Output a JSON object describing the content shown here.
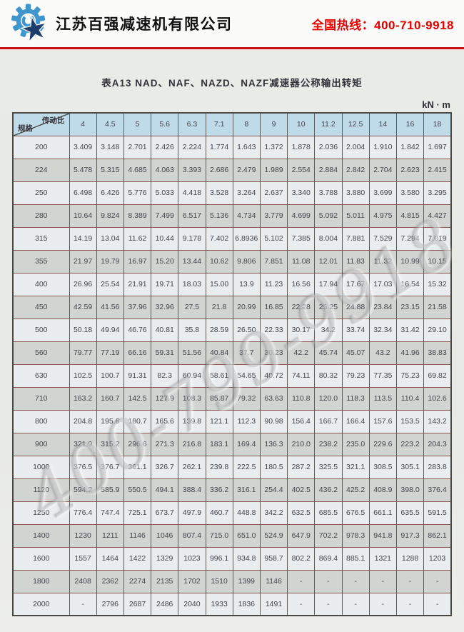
{
  "banner": {
    "company_name": "江苏百强减速机有限公司",
    "hotline": "全国热线：400-710-9918"
  },
  "document": {
    "title": "表A13  NAD、NAF、NAZD、NAZF减速器公称输出转矩",
    "unit": "kN · m",
    "watermark": "400-799-9918"
  },
  "table": {
    "corner": {
      "top_label": "传动比",
      "bottom_label": "规格"
    },
    "ratio_columns": [
      "4",
      "4.5",
      "5",
      "5.6",
      "6.3",
      "7.1",
      "8",
      "9",
      "10",
      "11.2",
      "12.5",
      "14",
      "16",
      "18"
    ],
    "rows": [
      {
        "spec": "200",
        "values": [
          "3.409",
          "3.148",
          "2.701",
          "2.426",
          "2.224",
          "1.774",
          "1.643",
          "1.372",
          "1.878",
          "2.036",
          "2.004",
          "1.910",
          "1.842",
          "1.697"
        ]
      },
      {
        "spec": "224",
        "values": [
          "5.478",
          "5.315",
          "4.685",
          "4.063",
          "3.393",
          "2.686",
          "2.479",
          "1.989",
          "2.554",
          "2.884",
          "2.842",
          "2.704",
          "2.623",
          "2.415"
        ]
      },
      {
        "spec": "250",
        "values": [
          "6.498",
          "6.426",
          "5.776",
          "5.033",
          "4.418",
          "3.528",
          "3.264",
          "2.637",
          "3.340",
          "3.788",
          "3.880",
          "3.699",
          "3.580",
          "3.295"
        ]
      },
      {
        "spec": "280",
        "values": [
          "10.64",
          "9.824",
          "8.389",
          "7.499",
          "6.517",
          "5.136",
          "4.734",
          "3.779",
          "4.699",
          "5.092",
          "5.011",
          "4.975",
          "4.815",
          "4.427"
        ]
      },
      {
        "spec": "315",
        "values": [
          "14.19",
          "13.04",
          "11.62",
          "10.44",
          "9.178",
          "7.402",
          "6.8936",
          "5.102",
          "7.385",
          "8.004",
          "7.881",
          "7.529",
          "7.294",
          "7.019"
        ]
      },
      {
        "spec": "355",
        "values": [
          "21.97",
          "19.79",
          "16.97",
          "15.20",
          "13.44",
          "10.62",
          "9.806",
          "7.851",
          "11.08",
          "12.01",
          "11.83",
          "11.32",
          "10.99",
          "10.15"
        ]
      },
      {
        "spec": "400",
        "values": [
          "26.96",
          "25.54",
          "21.91",
          "19.71",
          "18.03",
          "15.00",
          "13.9",
          "11.23",
          "16.56",
          "17.94",
          "17.67",
          "17.03",
          "16.54",
          "15.32"
        ]
      },
      {
        "spec": "450",
        "values": [
          "42.59",
          "41.56",
          "37.96",
          "32.96",
          "27.5",
          "21.8",
          "20.99",
          "16.85",
          "22.28",
          "25.25",
          "24.88",
          "23.84",
          "23.15",
          "21.58"
        ]
      },
      {
        "spec": "500",
        "values": [
          "50.18",
          "49.94",
          "46.76",
          "40.81",
          "35.8",
          "28.59",
          "26.50",
          "22.33",
          "30.17",
          "34.2",
          "33.74",
          "32.34",
          "31.42",
          "29.10"
        ]
      },
      {
        "spec": "560",
        "values": [
          "79.77",
          "77.19",
          "66.16",
          "59.31",
          "51.56",
          "40.84",
          "37.7",
          "30.23",
          "42.2",
          "45.74",
          "45.07",
          "43.2",
          "41.96",
          "38.83"
        ]
      },
      {
        "spec": "630",
        "values": [
          "102.5",
          "100.7",
          "91.31",
          "82.3",
          "60.94",
          "58.61",
          "54.65",
          "40.72",
          "74.11",
          "80.32",
          "79.23",
          "77.35",
          "75.23",
          "69.82"
        ]
      },
      {
        "spec": "710",
        "values": [
          "163.2",
          "160.7",
          "142.5",
          "127.9",
          "108.3",
          "85.87",
          "79.32",
          "63.63",
          "110.8",
          "120.0",
          "118.3",
          "113.5",
          "110.4",
          "102.6"
        ]
      },
      {
        "spec": "800",
        "values": [
          "204.8",
          "195.6",
          "180.7",
          "165.6",
          "139.8",
          "121.1",
          "112.3",
          "90.98",
          "156.4",
          "166.7",
          "166.4",
          "157.6",
          "153.5",
          "143.2"
        ]
      },
      {
        "spec": "900",
        "values": [
          "321.0",
          "315.2",
          "296.6",
          "271.3",
          "216.8",
          "183.1",
          "169.4",
          "136.3",
          "210.0",
          "238.2",
          "235.0",
          "229.6",
          "223.2",
          "204.3"
        ]
      },
      {
        "spec": "1000",
        "values": [
          "376.5",
          "376.7",
          "361.1",
          "326.7",
          "262.1",
          "239.8",
          "222.5",
          "180.5",
          "287.2",
          "325.5",
          "321.1",
          "308.5",
          "305.1",
          "283.8"
        ]
      },
      {
        "spec": "1120",
        "values": [
          "594.2",
          "585.9",
          "550.5",
          "494.1",
          "388.4",
          "336.2",
          "316.1",
          "254.4",
          "402.5",
          "436.2",
          "425.2",
          "408.9",
          "398.0",
          "376.4"
        ]
      },
      {
        "spec": "1250",
        "values": [
          "776.4",
          "747.4",
          "725.1",
          "673.7",
          "497.9",
          "460.7",
          "448.8",
          "342.2",
          "632.5",
          "685.5",
          "676.5",
          "661.1",
          "635.5",
          "591.5"
        ]
      },
      {
        "spec": "1400",
        "values": [
          "1230",
          "1211",
          "1146",
          "1046",
          "807.4",
          "715.0",
          "651.0",
          "524.9",
          "647.9",
          "702.2",
          "978.3",
          "941.8",
          "917.3",
          "862.1"
        ]
      },
      {
        "spec": "1600",
        "values": [
          "1557",
          "1464",
          "1422",
          "1329",
          "1023",
          "996.1",
          "934.8",
          "958.7",
          "802.2",
          "869.4",
          "885.1",
          "1321",
          "1288",
          "1203"
        ]
      },
      {
        "spec": "1800",
        "values": [
          "2408",
          "2362",
          "2274",
          "2135",
          "1702",
          "1510",
          "1399",
          "1146",
          "-",
          "-",
          "-",
          "-",
          "-",
          "-"
        ]
      },
      {
        "spec": "2000",
        "values": [
          "-",
          "2796",
          "2687",
          "2486",
          "2040",
          "1933",
          "1836",
          "1491",
          "-",
          "-",
          "-",
          "-",
          "-",
          "-"
        ]
      }
    ]
  },
  "colors": {
    "accent_red": "#c80e0e",
    "hotline_red": "#e60000",
    "header_cell_bg": "#bfdbe9",
    "row_light": "#e9edf0",
    "row_gray": "#d2d4d2",
    "logo_blue": "#3e96cc",
    "logo_navy": "#1c3e6b"
  }
}
